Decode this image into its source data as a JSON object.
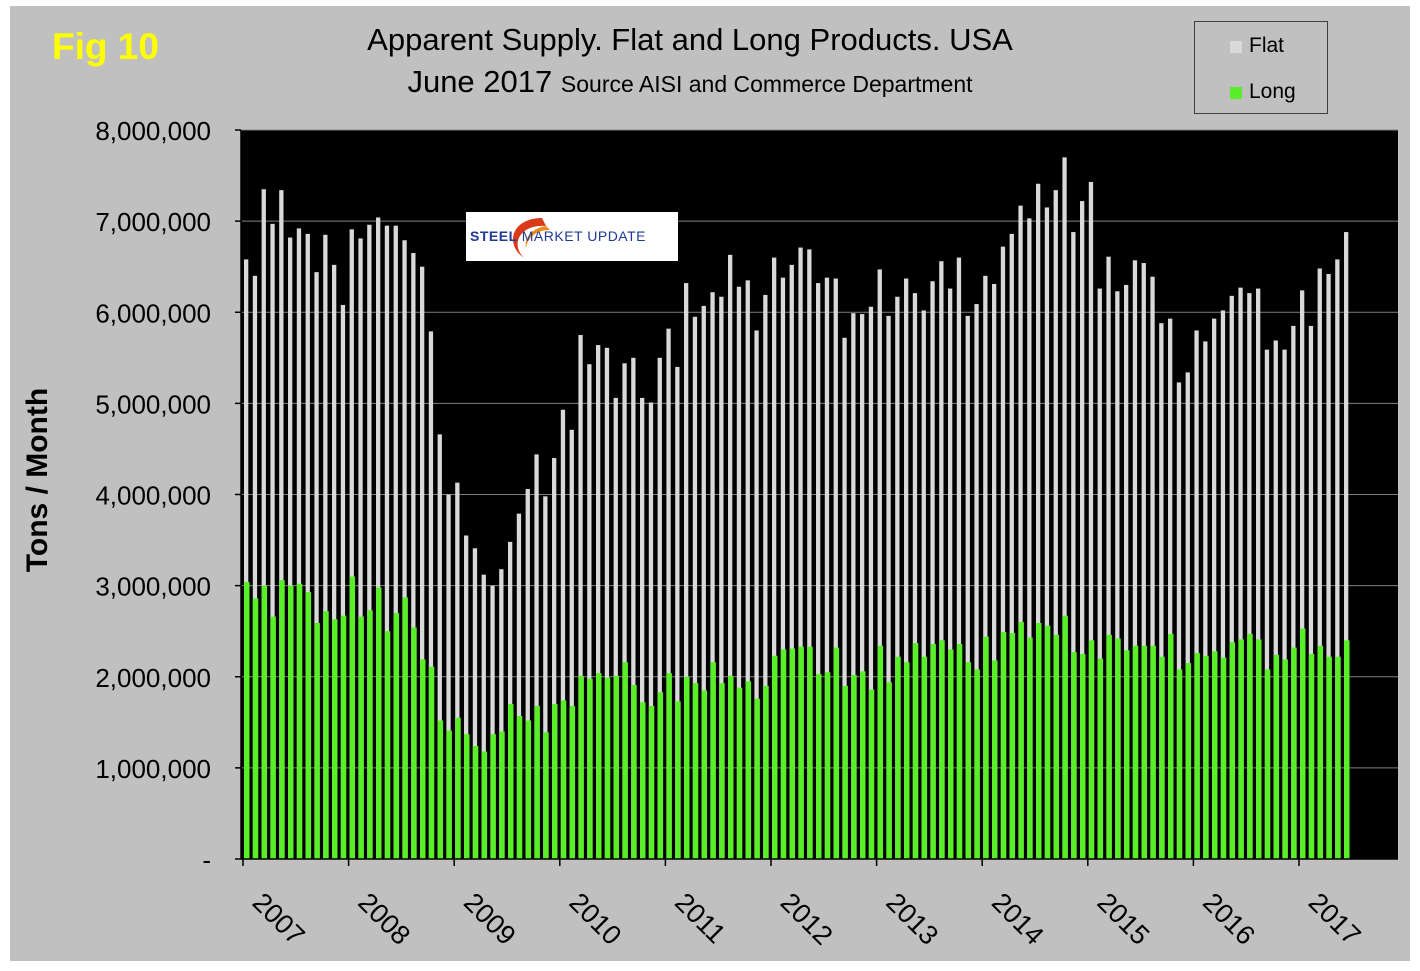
{
  "figure_label": "Fig 10",
  "title_line1": "Apparent Supply. Flat and Long Products. USA",
  "title_line2_main": "June 2017",
  "title_line2_source": "Source AISI and Commerce Department",
  "logo": {
    "text_a": "STEEL",
    "text_b": "MARKET UPDATE"
  },
  "colors": {
    "background": "#c0c0c0",
    "plot_bg": "#000000",
    "flat": "#d9d9d9",
    "long": "#5aee2a",
    "figlabel": "#ffff00"
  },
  "chart_data": {
    "type": "bar",
    "title": "Apparent Supply. Flat and Long Products. USA",
    "ylabel": "Tons / Month",
    "xlabel": "",
    "ylim": [
      0,
      8000000
    ],
    "y_ticks": [
      0,
      1000000,
      2000000,
      3000000,
      4000000,
      5000000,
      6000000,
      7000000,
      8000000
    ],
    "y_tick_labels": [
      "-",
      "1,000,000",
      "2,000,000",
      "3,000,000",
      "4,000,000",
      "5,000,000",
      "6,000,000",
      "7,000,000",
      "8,000,000"
    ],
    "x_tick_labels": [
      "2007",
      "2008",
      "2009",
      "2010",
      "2011",
      "2012",
      "2013",
      "2014",
      "2015",
      "2016",
      "2017"
    ],
    "period": "Jan 2007 – Jun 2017, monthly",
    "legend": [
      "Flat",
      "Long"
    ],
    "legend_position": "top-right",
    "grid": true,
    "series": [
      {
        "name": "Flat",
        "values": [
          6580000,
          6400000,
          7350000,
          6970000,
          7340000,
          6820000,
          6920000,
          6860000,
          6440000,
          6850000,
          6520000,
          6080000,
          6910000,
          6810000,
          6960000,
          7040000,
          6950000,
          6950000,
          6790000,
          6650000,
          6500000,
          5790000,
          4660000,
          4000000,
          4130000,
          3550000,
          3410000,
          3120000,
          3000000,
          3180000,
          3480000,
          3790000,
          4060000,
          4440000,
          3980000,
          4400000,
          4930000,
          4710000,
          5750000,
          5430000,
          5640000,
          5610000,
          5060000,
          5440000,
          5500000,
          5060000,
          5010000,
          5500000,
          5820000,
          5400000,
          6320000,
          5950000,
          6070000,
          6220000,
          6170000,
          6630000,
          6280000,
          6350000,
          5800000,
          6190000,
          6600000,
          6380000,
          6520000,
          6710000,
          6690000,
          6320000,
          6380000,
          6370000,
          5720000,
          5990000,
          5980000,
          6060000,
          6470000,
          5960000,
          6170000,
          6370000,
          6210000,
          6020000,
          6340000,
          6560000,
          6260000,
          6600000,
          5960000,
          6090000,
          6400000,
          6310000,
          6720000,
          6860000,
          7170000,
          7030000,
          7410000,
          7150000,
          7340000,
          7700000,
          6880000,
          7220000,
          7430000,
          6260000,
          6610000,
          6230000,
          6300000,
          6570000,
          6540000,
          6390000,
          5880000,
          5930000,
          5230000,
          5340000,
          5800000,
          5680000,
          5930000,
          6020000,
          6180000,
          6270000,
          6210000,
          6260000,
          5590000,
          5690000,
          5590000,
          5850000,
          6240000,
          5850000,
          6480000,
          6420000,
          6580000,
          6880000
        ]
      },
      {
        "name": "Long",
        "values": [
          3040000,
          2860000,
          3000000,
          2660000,
          3060000,
          3000000,
          3020000,
          2930000,
          2590000,
          2720000,
          2630000,
          2670000,
          3100000,
          2660000,
          2730000,
          2980000,
          2500000,
          2700000,
          2870000,
          2540000,
          2190000,
          2110000,
          1520000,
          1410000,
          1550000,
          1370000,
          1240000,
          1180000,
          1370000,
          1400000,
          1700000,
          1570000,
          1520000,
          1680000,
          1390000,
          1700000,
          1740000,
          1680000,
          2010000,
          1980000,
          2040000,
          1990000,
          2010000,
          2160000,
          1910000,
          1720000,
          1680000,
          1830000,
          2040000,
          1730000,
          2000000,
          1930000,
          1850000,
          2160000,
          1930000,
          2010000,
          1880000,
          1950000,
          1760000,
          1900000,
          2230000,
          2300000,
          2310000,
          2330000,
          2330000,
          2030000,
          2050000,
          2320000,
          1900000,
          2020000,
          2060000,
          1860000,
          2340000,
          1940000,
          2220000,
          2160000,
          2370000,
          2220000,
          2360000,
          2400000,
          2300000,
          2360000,
          2160000,
          2080000,
          2440000,
          2180000,
          2490000,
          2480000,
          2600000,
          2430000,
          2590000,
          2560000,
          2460000,
          2670000,
          2270000,
          2250000,
          2400000,
          2200000,
          2460000,
          2420000,
          2290000,
          2340000,
          2340000,
          2340000,
          2220000,
          2470000,
          2080000,
          2150000,
          2260000,
          2230000,
          2280000,
          2210000,
          2380000,
          2410000,
          2470000,
          2410000,
          2080000,
          2240000,
          2190000,
          2320000,
          2530000,
          2250000,
          2340000,
          2220000,
          2220000,
          2400000
        ]
      }
    ]
  }
}
